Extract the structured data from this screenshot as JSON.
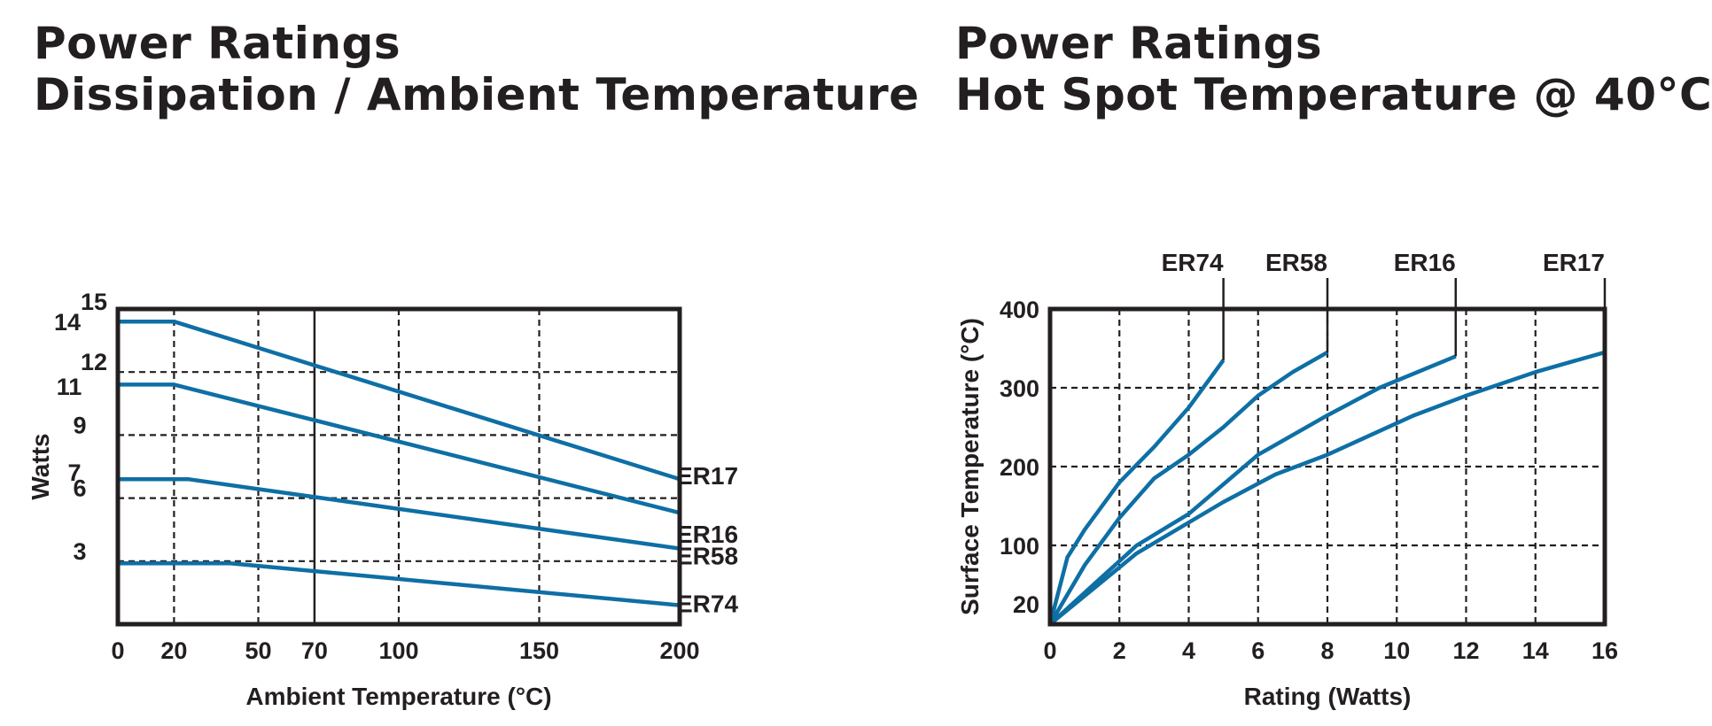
{
  "headings": {
    "left": {
      "line1": "Power Ratings",
      "line2": "Dissipation / Ambient Temperature"
    },
    "right": {
      "line1": "Power Ratings",
      "line2": "Hot Spot Temperature @ 40°C"
    }
  },
  "colors": {
    "series": "#0e6fa5",
    "axis": "#231f20",
    "grid": "#231f20"
  },
  "chart_data": [
    {
      "type": "line",
      "title": "",
      "xlabel": "Ambient Temperature (°C)",
      "ylabel": "Watts",
      "xlim": [
        0,
        200
      ],
      "ylim": [
        0,
        15
      ],
      "grid": "dashed",
      "x_ticks": [
        0,
        20,
        50,
        70,
        100,
        150,
        200
      ],
      "x_grid": [
        20,
        50,
        100,
        150
      ],
      "x_solid_line": 70,
      "y_ticks": [
        3,
        6,
        9,
        12,
        15
      ],
      "y_grid": [
        3,
        6,
        9,
        12
      ],
      "y_extra_labels": [
        14,
        11,
        7
      ],
      "series": [
        {
          "name": "ER17",
          "points": [
            [
              0,
              14.4
            ],
            [
              20,
              14.4
            ],
            [
              200,
              6.9
            ]
          ]
        },
        {
          "name": "ER16",
          "points": [
            [
              0,
              11.4
            ],
            [
              20,
              11.4
            ],
            [
              200,
              5.3
            ]
          ]
        },
        {
          "name": "ER58",
          "points": [
            [
              0,
              6.9
            ],
            [
              25,
              6.9
            ],
            [
              200,
              3.6
            ]
          ]
        },
        {
          "name": "ER74",
          "points": [
            [
              0,
              2.9
            ],
            [
              40,
              2.9
            ],
            [
              200,
              0.9
            ]
          ]
        }
      ]
    },
    {
      "type": "line",
      "title": "",
      "xlabel": "Rating (Watts)",
      "ylabel": "Surface Temperature (°C)",
      "xlim": [
        0,
        16
      ],
      "ylim": [
        0,
        400
      ],
      "grid": "dashed",
      "x_ticks": [
        0,
        2,
        4,
        6,
        8,
        10,
        12,
        14,
        16
      ],
      "x_grid": [
        2,
        4,
        6,
        8,
        10,
        12,
        14
      ],
      "y_ticks": [
        20,
        100,
        200,
        300,
        400
      ],
      "y_grid": [
        100,
        200,
        300
      ],
      "series": [
        {
          "name": "ER74",
          "points": [
            [
              0,
              0
            ],
            [
              0.5,
              85
            ],
            [
              1,
              120
            ],
            [
              2,
              180
            ],
            [
              3,
              225
            ],
            [
              4,
              275
            ],
            [
              5,
              335
            ]
          ]
        },
        {
          "name": "ER58",
          "points": [
            [
              0,
              0
            ],
            [
              1,
              75
            ],
            [
              2,
              135
            ],
            [
              3,
              185
            ],
            [
              4,
              215
            ],
            [
              5,
              250
            ],
            [
              6,
              290
            ],
            [
              7,
              320
            ],
            [
              8,
              345
            ]
          ]
        },
        {
          "name": "ER16",
          "points": [
            [
              0,
              0
            ],
            [
              1.5,
              60
            ],
            [
              2.5,
              100
            ],
            [
              4,
              140
            ],
            [
              6,
              215
            ],
            [
              8,
              265
            ],
            [
              9.5,
              300
            ],
            [
              11.7,
              340
            ]
          ]
        },
        {
          "name": "ER17",
          "points": [
            [
              0,
              0
            ],
            [
              2.5,
              90
            ],
            [
              5,
              155
            ],
            [
              6.5,
              190
            ],
            [
              8,
              215
            ],
            [
              10.5,
              265
            ],
            [
              12,
              290
            ],
            [
              14,
              320
            ],
            [
              16,
              345
            ]
          ]
        }
      ]
    }
  ]
}
